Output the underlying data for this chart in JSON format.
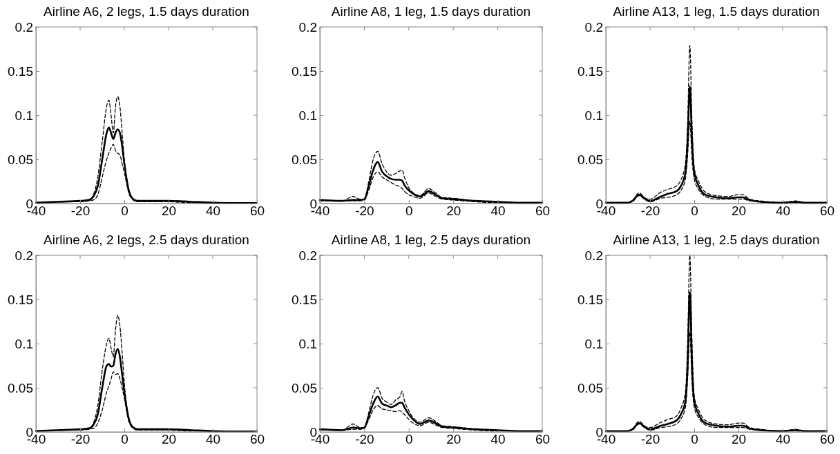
{
  "chart_data": [
    {
      "type": "line",
      "title": "Airline A6, 2 legs, 1.5 days duration",
      "x": [
        -40,
        -30,
        -20,
        -16,
        -14,
        -12,
        -10,
        -8,
        -7,
        -6,
        -5,
        -4,
        -3,
        -2,
        -1,
        0,
        2,
        4,
        6,
        10,
        20,
        30,
        40,
        50,
        60
      ],
      "xlim": [
        -40,
        60
      ],
      "xticks": [
        -40,
        -20,
        0,
        20,
        40,
        60
      ],
      "ylim": [
        0,
        0.2
      ],
      "yticks": [
        0,
        0.05,
        0.1,
        0.15,
        0.2
      ],
      "grid": false,
      "series": [
        {
          "color": "#000000",
          "line_style": "dashed",
          "values": [
            0.001,
            0.002,
            0.003,
            0.004,
            0.01,
            0.03,
            0.07,
            0.11,
            0.117,
            0.1,
            0.08,
            0.11,
            0.121,
            0.11,
            0.08,
            0.05,
            0.016,
            0.005,
            0.003,
            0.003,
            0.003,
            0.002,
            0.001,
            0.0005,
            0.0005
          ]
        },
        {
          "color": "#000000",
          "line_style": "dashed",
          "values": [
            0.001,
            0.002,
            0.002,
            0.003,
            0.004,
            0.01,
            0.03,
            0.05,
            0.057,
            0.063,
            0.067,
            0.06,
            0.057,
            0.055,
            0.045,
            0.035,
            0.012,
            0.004,
            0.002,
            0.002,
            0.002,
            0.001,
            0.001,
            0.0005,
            0.0005
          ]
        },
        {
          "color": "#000000",
          "line_style": "solid",
          "values": [
            0.001,
            0.002,
            0.003,
            0.004,
            0.008,
            0.02,
            0.05,
            0.08,
            0.086,
            0.08,
            0.073,
            0.08,
            0.084,
            0.08,
            0.065,
            0.045,
            0.015,
            0.005,
            0.003,
            0.003,
            0.003,
            0.002,
            0.001,
            0.0005,
            0.0005
          ]
        }
      ]
    },
    {
      "type": "line",
      "title": "Airline A8, 1 leg, 1.5 days duration",
      "x": [
        -40,
        -30,
        -25,
        -22,
        -20,
        -18,
        -16,
        -14,
        -12,
        -10,
        -8,
        -6,
        -4,
        -3,
        -2,
        0,
        2,
        5,
        9,
        12,
        15,
        20,
        30,
        40,
        50,
        60
      ],
      "xlim": [
        -40,
        60
      ],
      "xticks": [
        -40,
        -20,
        0,
        20,
        40,
        60
      ],
      "ylim": [
        0,
        0.2
      ],
      "yticks": [
        0,
        0.05,
        0.1,
        0.15,
        0.2
      ],
      "grid": false,
      "series": [
        {
          "color": "#000000",
          "line_style": "dashed",
          "values": [
            0.004,
            0.003,
            0.008,
            0.005,
            0.005,
            0.025,
            0.05,
            0.059,
            0.045,
            0.036,
            0.032,
            0.034,
            0.037,
            0.038,
            0.03,
            0.018,
            0.012,
            0.009,
            0.017,
            0.012,
            0.007,
            0.006,
            0.003,
            0.002,
            0.001,
            0.001
          ]
        },
        {
          "color": "#000000",
          "line_style": "dashed",
          "values": [
            0.003,
            0.003,
            0.003,
            0.003,
            0.004,
            0.015,
            0.03,
            0.036,
            0.03,
            0.027,
            0.024,
            0.021,
            0.019,
            0.017,
            0.014,
            0.01,
            0.008,
            0.006,
            0.012,
            0.008,
            0.005,
            0.004,
            0.002,
            0.001,
            0.001,
            0.001
          ]
        },
        {
          "color": "#000000",
          "line_style": "solid",
          "values": [
            0.004,
            0.003,
            0.004,
            0.004,
            0.005,
            0.02,
            0.038,
            0.047,
            0.036,
            0.031,
            0.028,
            0.027,
            0.027,
            0.026,
            0.021,
            0.015,
            0.011,
            0.008,
            0.014,
            0.01,
            0.006,
            0.005,
            0.003,
            0.002,
            0.001,
            0.001
          ]
        }
      ]
    },
    {
      "type": "line",
      "title": "Airline A13, 1 leg, 1.5 days duration",
      "x": [
        -40,
        -30,
        -28,
        -25,
        -22,
        -20,
        -15,
        -12,
        -8,
        -6,
        -4,
        -3,
        -2,
        -1,
        0,
        2,
        5,
        10,
        15,
        20,
        22,
        25,
        30,
        40,
        46,
        50,
        60
      ],
      "xlim": [
        -40,
        60
      ],
      "xticks": [
        -40,
        -20,
        0,
        20,
        40,
        60
      ],
      "ylim": [
        0,
        0.2
      ],
      "yticks": [
        0,
        0.05,
        0.1,
        0.15,
        0.2
      ],
      "grid": false,
      "series": [
        {
          "color": "#000000",
          "line_style": "dashed",
          "values": [
            0.001,
            0.001,
            0.003,
            0.012,
            0.006,
            0.005,
            0.013,
            0.016,
            0.02,
            0.027,
            0.045,
            0.09,
            0.179,
            0.09,
            0.04,
            0.025,
            0.013,
            0.009,
            0.008,
            0.01,
            0.01,
            0.005,
            0.003,
            0.001,
            0.003,
            0.001,
            0.001
          ]
        },
        {
          "color": "#000000",
          "line_style": "dashed",
          "values": [
            0.001,
            0.001,
            0.002,
            0.009,
            0.004,
            0.002,
            0.006,
            0.007,
            0.01,
            0.015,
            0.028,
            0.055,
            0.093,
            0.05,
            0.028,
            0.016,
            0.008,
            0.005,
            0.005,
            0.005,
            0.005,
            0.003,
            0.002,
            0.001,
            0.001,
            0.001,
            0.001
          ]
        },
        {
          "color": "#000000",
          "line_style": "solid",
          "values": [
            0.001,
            0.001,
            0.003,
            0.01,
            0.005,
            0.003,
            0.008,
            0.011,
            0.014,
            0.02,
            0.035,
            0.07,
            0.133,
            0.07,
            0.035,
            0.02,
            0.01,
            0.007,
            0.006,
            0.007,
            0.007,
            0.004,
            0.002,
            0.001,
            0.002,
            0.001,
            0.001
          ]
        }
      ]
    },
    {
      "type": "line",
      "title": "Airline A6, 2 legs, 2.5 days duration",
      "x": [
        -40,
        -30,
        -20,
        -16,
        -14,
        -12,
        -10,
        -8,
        -7,
        -6,
        -5,
        -4,
        -3,
        -2,
        -1,
        0,
        2,
        4,
        6,
        10,
        20,
        30,
        40,
        50,
        60
      ],
      "xlim": [
        -40,
        60
      ],
      "xticks": [
        -40,
        -20,
        0,
        20,
        40,
        60
      ],
      "ylim": [
        0,
        0.2
      ],
      "yticks": [
        0,
        0.05,
        0.1,
        0.15,
        0.2
      ],
      "grid": false,
      "series": [
        {
          "color": "#000000",
          "line_style": "dashed",
          "values": [
            0.001,
            0.002,
            0.003,
            0.004,
            0.01,
            0.03,
            0.07,
            0.1,
            0.106,
            0.095,
            0.085,
            0.115,
            0.132,
            0.12,
            0.09,
            0.055,
            0.016,
            0.005,
            0.003,
            0.003,
            0.003,
            0.002,
            0.001,
            0.0005,
            0.0005
          ]
        },
        {
          "color": "#000000",
          "line_style": "dashed",
          "values": [
            0.001,
            0.002,
            0.002,
            0.003,
            0.004,
            0.01,
            0.025,
            0.045,
            0.052,
            0.06,
            0.068,
            0.065,
            0.066,
            0.06,
            0.05,
            0.038,
            0.012,
            0.004,
            0.002,
            0.002,
            0.002,
            0.001,
            0.001,
            0.0005,
            0.0005
          ]
        },
        {
          "color": "#000000",
          "line_style": "solid",
          "values": [
            0.001,
            0.002,
            0.003,
            0.004,
            0.008,
            0.02,
            0.05,
            0.075,
            0.077,
            0.074,
            0.075,
            0.088,
            0.094,
            0.085,
            0.065,
            0.045,
            0.015,
            0.005,
            0.003,
            0.003,
            0.003,
            0.002,
            0.001,
            0.0005,
            0.0005
          ]
        }
      ]
    },
    {
      "type": "line",
      "title": "Airline A8, 1 leg, 2.5 days duration",
      "x": [
        -40,
        -30,
        -25,
        -22,
        -20,
        -18,
        -16,
        -14,
        -12,
        -10,
        -8,
        -6,
        -4,
        -3,
        -2,
        0,
        2,
        5,
        9,
        12,
        15,
        20,
        30,
        40,
        50,
        60
      ],
      "xlim": [
        -40,
        60
      ],
      "xticks": [
        -40,
        -20,
        0,
        20,
        40,
        60
      ],
      "ylim": [
        0,
        0.2
      ],
      "yticks": [
        0,
        0.05,
        0.1,
        0.15,
        0.2
      ],
      "grid": false,
      "series": [
        {
          "color": "#000000",
          "line_style": "dashed",
          "values": [
            0.003,
            0.002,
            0.009,
            0.005,
            0.005,
            0.022,
            0.042,
            0.05,
            0.038,
            0.034,
            0.031,
            0.036,
            0.04,
            0.046,
            0.036,
            0.024,
            0.016,
            0.011,
            0.016,
            0.012,
            0.007,
            0.006,
            0.003,
            0.002,
            0.001,
            0.001
          ]
        },
        {
          "color": "#000000",
          "line_style": "dashed",
          "values": [
            0.002,
            0.002,
            0.003,
            0.003,
            0.004,
            0.014,
            0.025,
            0.03,
            0.026,
            0.025,
            0.024,
            0.023,
            0.024,
            0.022,
            0.02,
            0.014,
            0.01,
            0.007,
            0.011,
            0.008,
            0.005,
            0.004,
            0.002,
            0.001,
            0.001,
            0.001
          ]
        },
        {
          "color": "#000000",
          "line_style": "solid",
          "values": [
            0.003,
            0.002,
            0.005,
            0.004,
            0.005,
            0.018,
            0.032,
            0.04,
            0.032,
            0.03,
            0.028,
            0.03,
            0.033,
            0.033,
            0.028,
            0.02,
            0.014,
            0.009,
            0.013,
            0.01,
            0.006,
            0.005,
            0.003,
            0.002,
            0.001,
            0.001
          ]
        }
      ]
    },
    {
      "type": "line",
      "title": "Airline A13, 1 leg, 2.5 days duration",
      "x": [
        -40,
        -30,
        -28,
        -25,
        -22,
        -20,
        -15,
        -12,
        -8,
        -6,
        -4,
        -3,
        -2,
        -1,
        0,
        2,
        5,
        10,
        15,
        20,
        22,
        25,
        30,
        40,
        46,
        50,
        60
      ],
      "xlim": [
        -40,
        60
      ],
      "xticks": [
        -40,
        -20,
        0,
        20,
        40,
        60
      ],
      "ylim": [
        0,
        0.2
      ],
      "yticks": [
        0,
        0.05,
        0.1,
        0.15,
        0.2
      ],
      "grid": false,
      "series": [
        {
          "color": "#000000",
          "line_style": "dashed",
          "values": [
            0.001,
            0.001,
            0.003,
            0.012,
            0.006,
            0.005,
            0.011,
            0.014,
            0.018,
            0.027,
            0.045,
            0.1,
            0.2,
            0.1,
            0.04,
            0.025,
            0.013,
            0.009,
            0.008,
            0.01,
            0.01,
            0.005,
            0.003,
            0.001,
            0.003,
            0.001,
            0.001
          ]
        },
        {
          "color": "#000000",
          "line_style": "dashed",
          "values": [
            0.001,
            0.001,
            0.002,
            0.009,
            0.004,
            0.002,
            0.005,
            0.006,
            0.009,
            0.015,
            0.028,
            0.06,
            0.113,
            0.055,
            0.028,
            0.016,
            0.008,
            0.005,
            0.005,
            0.005,
            0.005,
            0.003,
            0.002,
            0.001,
            0.001,
            0.001,
            0.001
          ]
        },
        {
          "color": "#000000",
          "line_style": "solid",
          "values": [
            0.001,
            0.001,
            0.003,
            0.01,
            0.005,
            0.003,
            0.007,
            0.009,
            0.013,
            0.02,
            0.035,
            0.075,
            0.158,
            0.075,
            0.035,
            0.02,
            0.01,
            0.007,
            0.006,
            0.007,
            0.007,
            0.004,
            0.002,
            0.001,
            0.002,
            0.001,
            0.001
          ]
        }
      ]
    }
  ]
}
